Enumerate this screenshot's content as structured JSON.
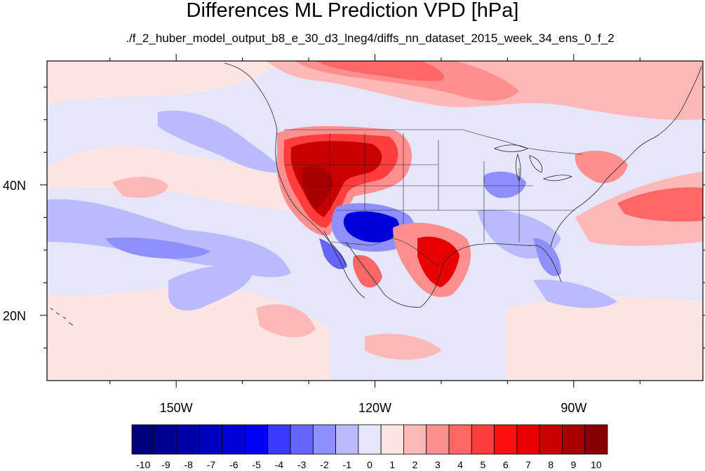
{
  "title": "Differences ML Prediction VPD [hPa]",
  "subtitle": "./f_2_huber_model_output_b8_e_30_d3_lneg4/diffs_nn_dataset_2015_week_34_ens_0_f_2",
  "map": {
    "lon_range": [
      -169.5,
      -70.5
    ],
    "lat_range": [
      10,
      59
    ],
    "lon_ticks": [
      {
        "value": -150,
        "label": "150W"
      },
      {
        "value": -120,
        "label": "120W"
      },
      {
        "value": -90,
        "label": "90W"
      }
    ],
    "lat_ticks": [
      {
        "value": 40,
        "label": "40N"
      },
      {
        "value": 20,
        "label": "20N"
      }
    ],
    "background_color": "#e6e6fa"
  },
  "colorbar": {
    "labels": [
      "-10",
      "-9",
      "-8",
      "-7",
      "-6",
      "-5",
      "-4",
      "-3",
      "-2",
      "-1",
      "0",
      "1",
      "2",
      "3",
      "4",
      "5",
      "6",
      "7",
      "8",
      "9",
      "10"
    ],
    "colors": [
      "#00007a",
      "#00008f",
      "#0000a8",
      "#0000c2",
      "#0000db",
      "#0000f5",
      "#3a3aff",
      "#6464ff",
      "#8f8fff",
      "#babaff",
      "#e6e6fa",
      "#ffe4e4",
      "#ffb8b8",
      "#ff8f8f",
      "#ff6666",
      "#ff3d3d",
      "#ff0f0f",
      "#e60000",
      "#c80000",
      "#a80000",
      "#850000"
    ]
  }
}
